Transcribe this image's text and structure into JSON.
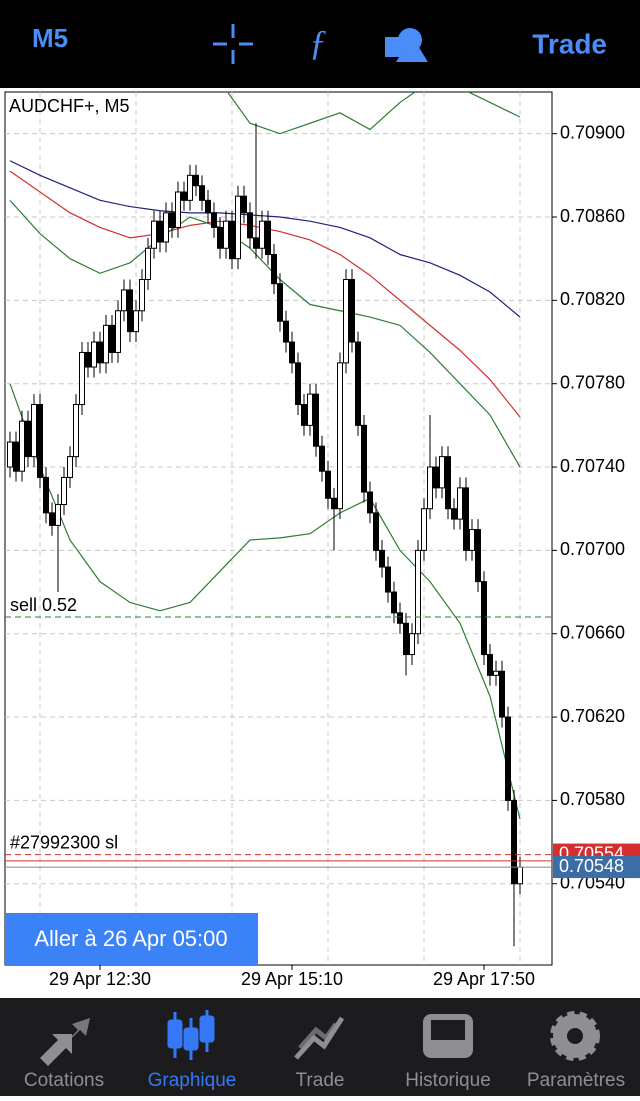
{
  "top_bar": {
    "timeframe": "M5",
    "trade": "Trade"
  },
  "chart_data": {
    "type": "candlestick",
    "title": "AUDCHF+, M5",
    "categories": [
      null,
      null,
      null,
      null,
      null,
      null,
      null,
      null,
      null,
      null,
      null,
      null,
      null,
      null,
      null,
      "29 Apr 12:30",
      null,
      null,
      null,
      null,
      null,
      null,
      null,
      null,
      null,
      null,
      null,
      null,
      null,
      null,
      null,
      null,
      null,
      null,
      null,
      null,
      null,
      null,
      null,
      null,
      null,
      null,
      null,
      null,
      null,
      null,
      null,
      "29 Apr 15:10",
      null,
      null,
      null,
      null,
      null,
      null,
      null,
      null,
      null,
      null,
      null,
      null,
      null,
      null,
      null,
      null,
      null,
      null,
      null,
      null,
      null,
      null,
      null,
      null,
      null,
      null,
      null,
      null,
      null,
      null,
      null,
      "29 Apr 17:50",
      null,
      null,
      null,
      null,
      null,
      null
    ],
    "open": [
      0.7074,
      0.70752,
      0.70738,
      0.70762,
      0.70745,
      0.7077,
      0.70735,
      0.70718,
      0.70712,
      0.70722,
      0.70735,
      0.70745,
      0.7077,
      0.70795,
      0.70788,
      0.708,
      0.7079,
      0.70808,
      0.70795,
      0.70815,
      0.70825,
      0.70805,
      0.70815,
      0.7083,
      0.70845,
      0.70858,
      0.70848,
      0.70862,
      0.70855,
      0.70872,
      0.70868,
      0.7088,
      0.70875,
      0.70868,
      0.70862,
      0.70855,
      0.70845,
      0.70858,
      0.7084,
      0.7087,
      0.70862,
      0.7085,
      0.70845,
      0.70858,
      0.70842,
      0.70828,
      0.7081,
      0.708,
      0.7079,
      0.7077,
      0.7076,
      0.70775,
      0.7075,
      0.70738,
      0.70725,
      0.7072,
      0.7079,
      0.7083,
      0.708,
      0.7076,
      0.70728,
      0.70718,
      0.707,
      0.70692,
      0.7068,
      0.7067,
      0.70665,
      0.7065,
      0.7066,
      0.707,
      0.7072,
      0.7074,
      0.7073,
      0.70745,
      0.7072,
      0.70715,
      0.7073,
      0.707,
      0.7071,
      0.70685,
      0.7065,
      0.7064,
      0.70642,
      0.7062,
      0.7058,
      0.7054
    ],
    "high": [
      0.70757,
      0.70757,
      0.70767,
      0.70767,
      0.70775,
      0.70775,
      0.7074,
      0.70723,
      0.70727,
      0.7074,
      0.7075,
      0.70775,
      0.708,
      0.708,
      0.70805,
      0.70805,
      0.70813,
      0.70813,
      0.7082,
      0.7083,
      0.7083,
      0.7082,
      0.70835,
      0.7085,
      0.70863,
      0.70863,
      0.70867,
      0.70867,
      0.70877,
      0.70877,
      0.70885,
      0.70885,
      0.7088,
      0.70873,
      0.70867,
      0.7086,
      0.70863,
      0.70863,
      0.70875,
      0.70875,
      0.70867,
      0.70905,
      0.70863,
      0.70863,
      0.70847,
      0.70833,
      0.70815,
      0.70805,
      0.70795,
      0.70775,
      0.7078,
      0.7078,
      0.70755,
      0.70743,
      0.7073,
      0.70795,
      0.70835,
      0.70835,
      0.70805,
      0.70765,
      0.70733,
      0.70723,
      0.70705,
      0.70697,
      0.70685,
      0.70675,
      0.7067,
      0.70665,
      0.70705,
      0.70725,
      0.70765,
      0.70745,
      0.7075,
      0.7075,
      0.70725,
      0.70735,
      0.70735,
      0.70715,
      0.70715,
      0.7069,
      0.70655,
      0.70647,
      0.70647,
      0.70625,
      0.70585,
      0.70553
    ],
    "low": [
      0.70735,
      0.70733,
      0.70733,
      0.7074,
      0.7074,
      0.7073,
      0.70713,
      0.70707,
      0.7068,
      0.70717,
      0.7073,
      0.7074,
      0.70765,
      0.70783,
      0.70783,
      0.70785,
      0.70785,
      0.7079,
      0.7079,
      0.7081,
      0.708,
      0.708,
      0.7081,
      0.70825,
      0.7084,
      0.70843,
      0.70843,
      0.7085,
      0.7085,
      0.70863,
      0.70863,
      0.7087,
      0.70863,
      0.70857,
      0.7085,
      0.7084,
      0.7084,
      0.70835,
      0.70835,
      0.70857,
      0.70845,
      0.7084,
      0.7084,
      0.70837,
      0.70823,
      0.70805,
      0.70795,
      0.70785,
      0.70765,
      0.70755,
      0.70755,
      0.70745,
      0.70733,
      0.7072,
      0.707,
      0.70715,
      0.70785,
      0.70795,
      0.70755,
      0.70723,
      0.70713,
      0.70695,
      0.70687,
      0.70675,
      0.70665,
      0.7066,
      0.7064,
      0.70645,
      0.70655,
      0.70695,
      0.70715,
      0.70725,
      0.70725,
      0.70715,
      0.7071,
      0.7071,
      0.70695,
      0.70695,
      0.7068,
      0.70645,
      0.70635,
      0.70635,
      0.70615,
      0.70575,
      0.7051,
      0.70535
    ],
    "close": [
      0.70752,
      0.70738,
      0.70762,
      0.70745,
      0.7077,
      0.70735,
      0.70718,
      0.70712,
      0.70722,
      0.70735,
      0.70745,
      0.7077,
      0.70795,
      0.70788,
      0.708,
      0.7079,
      0.70808,
      0.70795,
      0.70815,
      0.70825,
      0.70805,
      0.70815,
      0.7083,
      0.70845,
      0.70858,
      0.70848,
      0.70862,
      0.70855,
      0.70872,
      0.70868,
      0.7088,
      0.70875,
      0.70868,
      0.70862,
      0.70855,
      0.70845,
      0.70858,
      0.7084,
      0.7087,
      0.70862,
      0.7085,
      0.70845,
      0.70858,
      0.70842,
      0.70828,
      0.7081,
      0.708,
      0.7079,
      0.7077,
      0.7076,
      0.70775,
      0.7075,
      0.70738,
      0.70725,
      0.7072,
      0.7079,
      0.7083,
      0.708,
      0.7076,
      0.70728,
      0.70718,
      0.707,
      0.70692,
      0.7068,
      0.7067,
      0.70665,
      0.7065,
      0.7066,
      0.707,
      0.7072,
      0.7074,
      0.7073,
      0.70745,
      0.7072,
      0.70715,
      0.7073,
      0.707,
      0.7071,
      0.70685,
      0.7065,
      0.7064,
      0.70642,
      0.7062,
      0.7058,
      0.7054,
      0.70548
    ],
    "up_color": "#ffffff",
    "down_color": "#000000",
    "lines": [
      {
        "color": "#1a237e",
        "x": [
          0,
          5,
          10,
          15,
          20,
          25,
          30,
          35,
          40,
          45,
          50,
          55,
          60,
          65,
          70,
          75,
          80,
          85
        ],
        "values": [
          0.70887,
          0.7088,
          0.70874,
          0.70868,
          0.70865,
          0.70863,
          0.70862,
          0.70862,
          0.70861,
          0.7086,
          0.70858,
          0.70855,
          0.7085,
          0.70842,
          0.70838,
          0.70832,
          0.70824,
          0.70812
        ]
      },
      {
        "color": "#d32f2f",
        "x": [
          0,
          5,
          10,
          15,
          20,
          25,
          30,
          35,
          40,
          45,
          50,
          55,
          60,
          65,
          70,
          75,
          80,
          85
        ],
        "values": [
          0.70882,
          0.70872,
          0.70862,
          0.70855,
          0.7085,
          0.70852,
          0.70856,
          0.70858,
          0.70856,
          0.70853,
          0.70849,
          0.70842,
          0.70832,
          0.7082,
          0.70808,
          0.70796,
          0.70782,
          0.70764
        ]
      },
      {
        "color": "#2e7d32",
        "x": [
          0,
          5,
          10,
          15,
          20,
          25,
          30,
          35,
          40,
          45,
          50,
          55,
          60,
          65,
          70,
          75,
          80,
          85
        ],
        "values": [
          0.70868,
          0.70852,
          0.7084,
          0.70833,
          0.70838,
          0.7085,
          0.7086,
          0.70855,
          0.70845,
          0.7083,
          0.70818,
          0.70815,
          0.70812,
          0.70808,
          0.70795,
          0.7078,
          0.70765,
          0.7074
        ]
      },
      {
        "color": "#2e7d32",
        "x": [
          35,
          40,
          45,
          50,
          55,
          60,
          65,
          70,
          75,
          80,
          85
        ],
        "values": [
          0.70925,
          0.70905,
          0.709,
          0.70905,
          0.7091,
          0.70902,
          0.70915,
          0.70925,
          0.70922,
          0.70915,
          0.70908
        ]
      },
      {
        "color": "#2e7d32",
        "x": [
          0,
          5,
          10,
          15,
          20,
          25,
          30,
          35,
          40,
          45,
          50,
          55,
          60,
          65,
          70,
          75,
          80,
          85
        ],
        "values": [
          0.7078,
          0.7074,
          0.70705,
          0.70685,
          0.70675,
          0.70671,
          0.70675,
          0.7069,
          0.70705,
          0.70706,
          0.70708,
          0.70718,
          0.70725,
          0.707,
          0.70685,
          0.70665,
          0.7063,
          0.70571
        ]
      }
    ],
    "levels": [
      {
        "label": "sell 0.52",
        "value": 0.70668,
        "color": "#2e7d32",
        "dashed": true
      },
      {
        "label": "#27992300 sl",
        "value": 0.70554,
        "color": "#d32f2f",
        "dashed": true,
        "box": true
      },
      {
        "value": 0.70551,
        "color": "#d32f2f",
        "dashed": false
      },
      {
        "value": 0.70548,
        "color": "#888888",
        "dashed": false,
        "box": true,
        "box_color": "#3a6ea5"
      }
    ],
    "ylim": [
      0.70501,
      0.7092
    ],
    "yticks": [
      {
        "value": 0.7054,
        "label": "0.70540"
      },
      {
        "value": 0.7058,
        "label": "0.70580"
      },
      {
        "value": 0.7062,
        "label": "0.70620"
      },
      {
        "value": 0.7066,
        "label": "0.70660"
      },
      {
        "value": 0.707,
        "label": "0.70700"
      },
      {
        "value": 0.7074,
        "label": "0.70740"
      },
      {
        "value": 0.7078,
        "label": "0.70780"
      },
      {
        "value": 0.7082,
        "label": "0.70820"
      },
      {
        "value": 0.7086,
        "label": "0.70860"
      },
      {
        "value": 0.709,
        "label": "0.70900"
      }
    ],
    "grid": true
  },
  "goto_button": "Aller à 26 Apr 05:00",
  "tabs": [
    {
      "label": "Cotations",
      "active": false
    },
    {
      "label": "Graphique",
      "active": true
    },
    {
      "label": "Trade",
      "active": false
    },
    {
      "label": "Historique",
      "active": false
    },
    {
      "label": "Paramètres",
      "active": false
    }
  ]
}
